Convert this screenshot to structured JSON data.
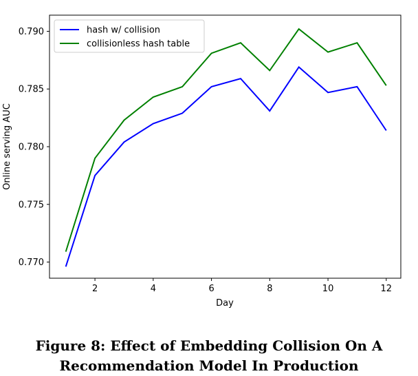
{
  "chart_data": {
    "type": "line",
    "title": "",
    "xlabel": "Day",
    "ylabel": "Online serving AUC",
    "xlim": [
      0.44,
      12.5
    ],
    "ylim": [
      0.7686,
      0.7914
    ],
    "xticks": [
      2,
      4,
      6,
      8,
      10,
      12
    ],
    "yticks": [
      0.77,
      0.775,
      0.78,
      0.785,
      0.79
    ],
    "ytick_labels": [
      "0.770",
      "0.775",
      "0.780",
      "0.785",
      "0.790"
    ],
    "grid": false,
    "legend_position": "top-left",
    "x": [
      1,
      2,
      3,
      4,
      5,
      6,
      7,
      8,
      9,
      10,
      11,
      12
    ],
    "series": [
      {
        "name": "hash w/ collision",
        "color": "#0000ff",
        "values": [
          0.7696,
          0.7775,
          0.7804,
          0.782,
          0.7829,
          0.7852,
          0.7859,
          0.7831,
          0.7869,
          0.7847,
          0.7852,
          0.7814
        ]
      },
      {
        "name": "collisionless hash table",
        "color": "#008000",
        "values": [
          0.7709,
          0.779,
          0.7823,
          0.7843,
          0.7852,
          0.7881,
          0.789,
          0.7866,
          0.7902,
          0.7882,
          0.789,
          0.7853
        ]
      }
    ]
  },
  "caption": {
    "line1": "Figure 8: Effect of Embedding Collision On A",
    "line2": "Recommendation Model In Production"
  }
}
